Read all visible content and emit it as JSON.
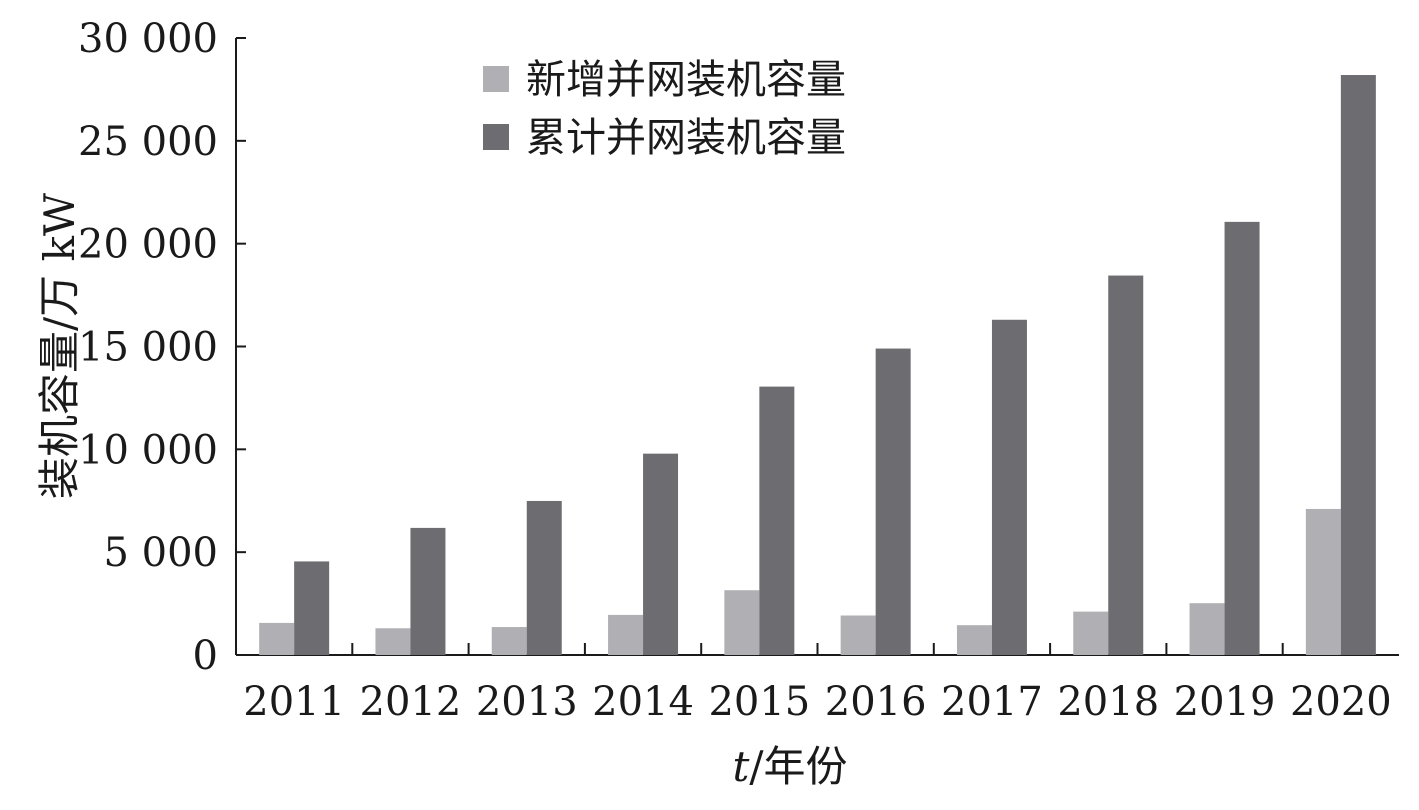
{
  "chart_data": {
    "type": "bar",
    "categories": [
      "2011",
      "2012",
      "2013",
      "2014",
      "2015",
      "2016",
      "2017",
      "2018",
      "2019",
      "2020"
    ],
    "series": [
      {
        "name": "新增并网装机容量",
        "color": "#b0b0b4",
        "values": [
          1560,
          1300,
          1360,
          1950,
          3150,
          1920,
          1450,
          2110,
          2520,
          7100
        ]
      },
      {
        "name": "累计并网装机容量",
        "color": "#6d6c71",
        "values": [
          4550,
          6180,
          7490,
          9790,
          13050,
          14900,
          16300,
          18450,
          21060,
          28200
        ]
      }
    ],
    "ylim": [
      0,
      30000
    ],
    "yticks": [
      0,
      5000,
      10000,
      15000,
      20000,
      25000,
      30000
    ],
    "ytick_labels": [
      "0",
      "5 000",
      "10 000",
      "15 000",
      "20 000",
      "25 000",
      "30 000"
    ],
    "ylabel": "装机容量/万 kW",
    "xlabel_var": "t",
    "xlabel_unit": "/年份",
    "legend_position": "top-center",
    "grid": false
  }
}
